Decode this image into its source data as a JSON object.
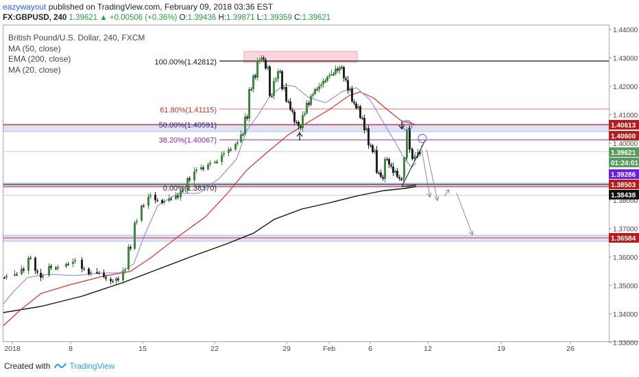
{
  "header": {
    "author": "eazywayout",
    "published": "published on TradingView.com, February 09, 2018 03:36 EST",
    "symbol": "FX:GBPUSD, 240",
    "change": "1.39621 ▲ +0.00506 (+0.36%)",
    "o_label": "O:",
    "o_value": "1.39436",
    "h_label": "H:",
    "h_value": "1.39871",
    "l_label": "L:",
    "l_value": "1.39359",
    "c_label": "C:",
    "c_value": "1.39621"
  },
  "legend": {
    "title": "British Pound/U.S. Dollar, 240, FXCM",
    "items": [
      "MA (50, close)",
      "EMA (200, close)",
      "MA (20, close)"
    ]
  },
  "fib_labels": {
    "f100": "100.00%(1.42812)",
    "f618": "61.80%(1.41115)",
    "f50": "50.00%(1.40591)",
    "f382": "38.20%(1.40067)",
    "f0": "0.00%(1.38370)"
  },
  "price_axis": {
    "ticks": [
      "1.44000",
      "1.43000",
      "1.42000",
      "1.41000",
      "1.40000",
      "1.39000",
      "1.38000",
      "1.37000",
      "1.36000",
      "1.35000",
      "1.34000",
      "1.33000"
    ],
    "badges": [
      {
        "text": "1.40613",
        "color": "#b71c1c"
      },
      {
        "text": "1.40600",
        "color": "#b71c1c"
      },
      {
        "text": "1.39621",
        "color": "#5a9a5e"
      },
      {
        "text": "01:24:01",
        "color": "#5a9a5e"
      },
      {
        "text": "1.39286",
        "color": "#6a1bf0"
      },
      {
        "text": "1.38503",
        "color": "#b71c1c"
      },
      {
        "text": "1.38438",
        "color": "#111111"
      },
      {
        "text": "1.36584",
        "color": "#b71c1c"
      }
    ]
  },
  "time_axis": {
    "labels": [
      "2018",
      "8",
      "15",
      "22",
      "29",
      "Feb",
      "6",
      "12",
      "19",
      "26"
    ]
  },
  "footer": {
    "created_with": "Created with",
    "brand": "TradingView"
  },
  "chart_data": {
    "type": "candlestick",
    "symbol": "FX:GBPUSD",
    "timeframe": "240",
    "ylim": [
      1.33,
      1.44
    ],
    "x_ticks": [
      "2018",
      "8",
      "15",
      "22",
      "29",
      "Feb",
      "6",
      "12",
      "19",
      "26"
    ],
    "series": [
      {
        "name": "MA (50, close)",
        "color": "#d32f2f"
      },
      {
        "name": "EMA (200, close)",
        "color": "#111111"
      },
      {
        "name": "MA (20, close)",
        "color": "#7e7ef0"
      }
    ],
    "fibonacci": [
      {
        "level": "100.00%",
        "price": 1.42812
      },
      {
        "level": "61.80%",
        "price": 1.41115
      },
      {
        "level": "50.00%",
        "price": 1.40591
      },
      {
        "level": "38.20%",
        "price": 1.40067
      },
      {
        "level": "0.00%",
        "price": 1.3837
      }
    ],
    "zones": [
      1.4059,
      1.3849,
      1.3658
    ]
  },
  "colors": {
    "up_candle": "#3c8a3e",
    "down_candle": "#222222",
    "ma50": "#d32f2f",
    "ema200": "#111111",
    "ma20": "#7e7ef0",
    "fib_red": "#d32f2f",
    "fib_purple": "#8e24aa",
    "zone_fill": "#dde3f5"
  }
}
